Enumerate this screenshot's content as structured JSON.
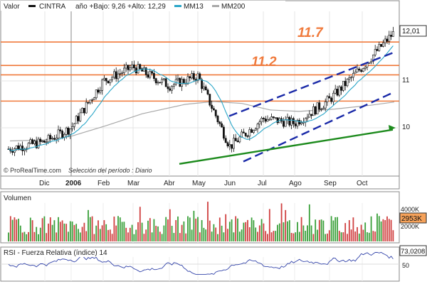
{
  "header": {
    "label": "Valor",
    "ticker": "CINTRA",
    "period_info": "año +Bajo: 9,26 +Alto: 12,29",
    "ma_short": "MM13",
    "ma_long": "MM200"
  },
  "colors": {
    "price": "#111111",
    "ma_short": "#2aa6c8",
    "ma_long": "#a8a8a8",
    "resistance": "#f07a3c",
    "channel": "#1a2aa8",
    "trend": "#1c8a1c",
    "volume_up": "#3aa03a",
    "volume_down": "#d04040",
    "rsi": "#3344aa",
    "panel_bg": "#ffffff",
    "header_bg": "#f0f0f0"
  },
  "watermark": "© ProRealTime.com",
  "selection_note": "Selección del período : Diario",
  "annotations": {
    "level_high": "11.7",
    "level_mid": "11.2"
  },
  "price_panel": {
    "last_value": "12,01"
  },
  "volume_panel": {
    "title": "Volumen",
    "last_value": "2953K"
  },
  "rsi_panel": {
    "title": "RSI - Fuerza Relativa (índice) 14",
    "last_value": "73,0208"
  },
  "x_labels": [
    "Dic",
    "2006",
    "Feb",
    "Mar",
    "Abr",
    "May",
    "Jun",
    "Jul",
    "Ago",
    "Sep",
    "Oct"
  ],
  "chart_data": [
    {
      "type": "candlestick",
      "title": "CINTRA",
      "x_ticks": [
        "Dic",
        "2006",
        "Feb",
        "Mar",
        "Abr",
        "May",
        "Jun",
        "Jul",
        "Ago",
        "Sep",
        "Oct"
      ],
      "y_ticks": [
        10,
        11
      ],
      "ylim": [
        9.2,
        12.5
      ],
      "resistance_levels": [
        11.83,
        11.33,
        11.13,
        10.57
      ],
      "price_path": [
        {
          "x": "Dic",
          "y": 9.7
        },
        {
          "x": "2006",
          "y": 10.0
        },
        {
          "x": "Feb",
          "y": 11.0
        },
        {
          "x": "Mar",
          "y": 11.3
        },
        {
          "x": "Abr",
          "y": 10.9
        },
        {
          "x": "May",
          "y": 11.1
        },
        {
          "x": "Jun",
          "y": 9.6
        },
        {
          "x": "Jul",
          "y": 10.2
        },
        {
          "x": "Ago",
          "y": 10.1
        },
        {
          "x": "Sep",
          "y": 10.6
        },
        {
          "x": "Oct",
          "y": 11.3
        },
        {
          "x": "end",
          "y": 12.01
        }
      ],
      "last": 12.01,
      "grid": true
    },
    {
      "type": "bar",
      "title": "Volumen",
      "y_ticks": [
        "2000K",
        "4000K"
      ],
      "last": "2953K"
    },
    {
      "type": "line",
      "title": "RSI - Fuerza Relativa (índice) 14",
      "y_ticks": [
        50
      ],
      "last": 73.0208
    }
  ]
}
